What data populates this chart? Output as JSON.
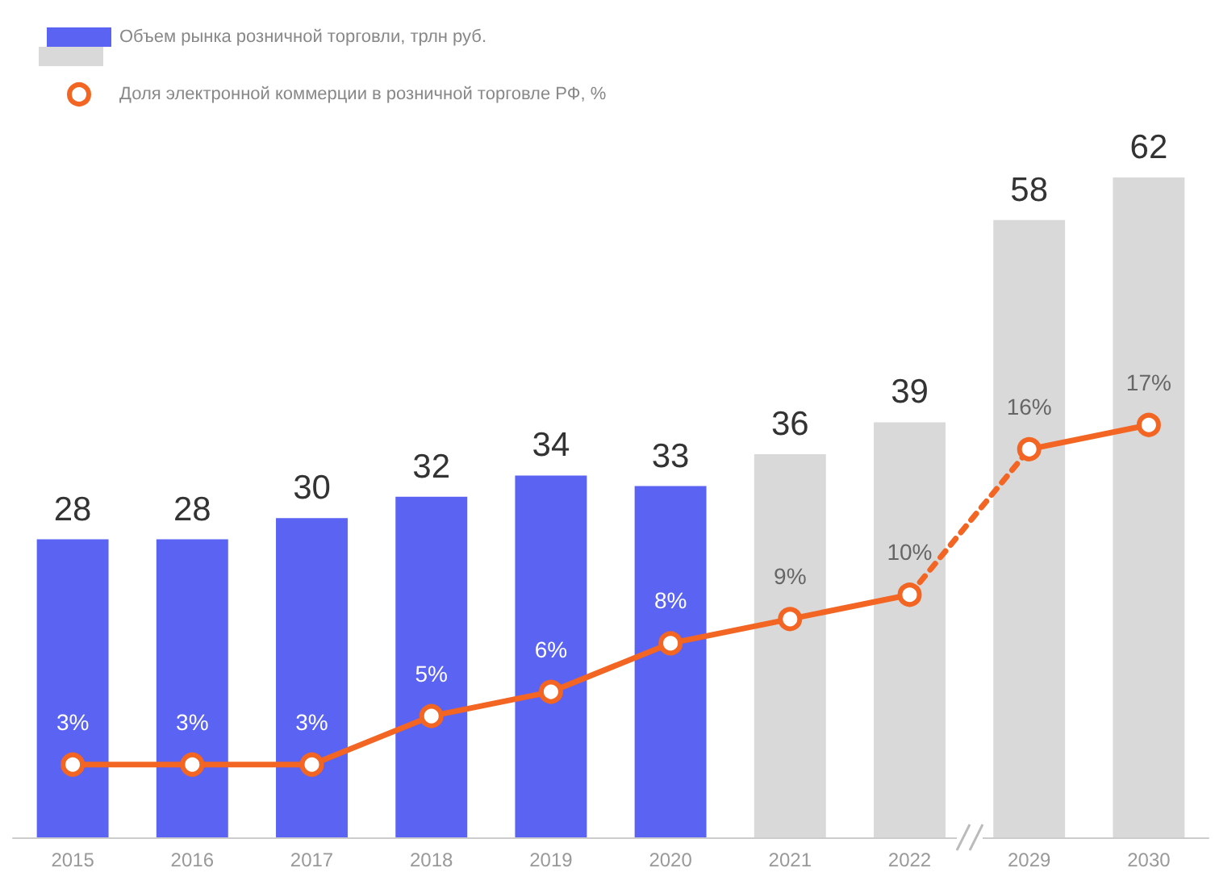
{
  "chart_data": {
    "type": "bar",
    "categories": [
      "2015",
      "2016",
      "2017",
      "2018",
      "2019",
      "2020",
      "2021",
      "2022",
      "2029",
      "2030"
    ],
    "series": [
      {
        "name": "Объем рынка розничной торговли, трлн руб.",
        "values": [
          28,
          28,
          30,
          32,
          34,
          33,
          36,
          39,
          58,
          62
        ],
        "colors": [
          "#5b63f2",
          "#5b63f2",
          "#5b63f2",
          "#5b63f2",
          "#5b63f2",
          "#5b63f2",
          "#d9d9d9",
          "#d9d9d9",
          "#d9d9d9",
          "#d9d9d9"
        ],
        "data_labels": true
      },
      {
        "name": "Доля электронной коммерции в розничной торговле РФ, %",
        "type": "line",
        "axis": "y2",
        "color": "#f26522",
        "values": [
          3,
          3,
          3,
          5,
          6,
          8,
          9,
          10,
          null,
          null
        ],
        "value_labels": [
          "3%",
          "3%",
          "3%",
          "5%",
          "6%",
          "8%",
          "9%",
          "10%",
          null,
          null
        ],
        "marker": "circle",
        "line_style": "solid"
      },
      {
        "type": "line",
        "axis": "y2",
        "color": "#f26522",
        "values": [
          null,
          null,
          null,
          null,
          null,
          null,
          null,
          10,
          16,
          null
        ],
        "marker": "none",
        "line_style": "dashed"
      },
      {
        "type": "line",
        "axis": "y2",
        "color": "#f26522",
        "values": [
          null,
          null,
          null,
          null,
          null,
          null,
          null,
          null,
          16,
          17
        ],
        "value_labels": [
          null,
          null,
          null,
          null,
          null,
          null,
          null,
          null,
          "16%",
          "17%"
        ],
        "marker": "circle",
        "line_style": "solid"
      }
    ],
    "legend": "top left",
    "grid": false,
    "tick_labels": "x"
  }
}
